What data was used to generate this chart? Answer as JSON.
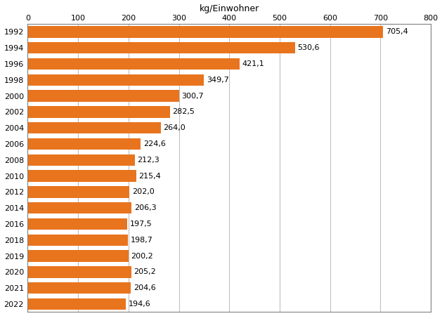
{
  "years": [
    "1992",
    "1994",
    "1996",
    "1998",
    "2000",
    "2002",
    "2004",
    "2006",
    "2008",
    "2010",
    "2012",
    "2014",
    "2016",
    "2018",
    "2019",
    "2020",
    "2021",
    "2022"
  ],
  "values": [
    705.4,
    530.6,
    421.1,
    349.7,
    300.7,
    282.5,
    264.0,
    224.6,
    212.3,
    215.4,
    202.0,
    206.3,
    197.5,
    198.7,
    200.2,
    205.2,
    204.6,
    194.6
  ],
  "labels": [
    "705,4",
    "530,6",
    "421,1",
    "349,7",
    "300,7",
    "282,5",
    "264,0",
    "224,6",
    "212,3",
    "215,4",
    "202,0",
    "206,3",
    "197,5",
    "198,7",
    "200,2",
    "205,2",
    "204,6",
    "194,6"
  ],
  "bar_color": "#E8741E",
  "xlabel": "kg/Einwohner",
  "xlim": [
    0,
    800
  ],
  "xticks": [
    0,
    100,
    200,
    300,
    400,
    500,
    600,
    700,
    800
  ],
  "background_color": "#ffffff",
  "grid_color": "#c0c0c0",
  "label_fontsize": 8,
  "axis_label_fontsize": 9,
  "bar_height": 0.72
}
